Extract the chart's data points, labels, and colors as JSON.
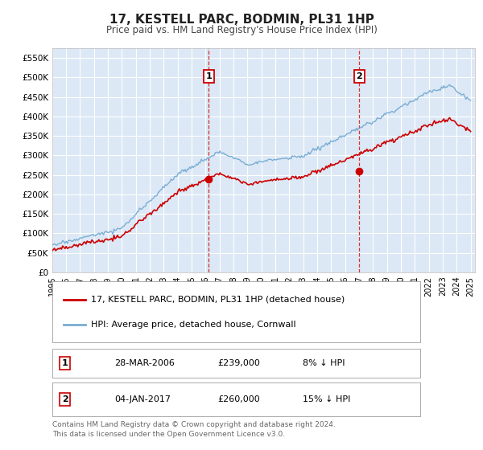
{
  "title": "17, KESTELL PARC, BODMIN, PL31 1HP",
  "subtitle": "Price paid vs. HM Land Registry's House Price Index (HPI)",
  "ylabel_ticks": [
    "£0",
    "£50K",
    "£100K",
    "£150K",
    "£200K",
    "£250K",
    "£300K",
    "£350K",
    "£400K",
    "£450K",
    "£500K",
    "£550K"
  ],
  "ytick_values": [
    0,
    50000,
    100000,
    150000,
    200000,
    250000,
    300000,
    350000,
    400000,
    450000,
    500000,
    550000
  ],
  "ylim": [
    0,
    575000
  ],
  "xlim_start": 1995.0,
  "xlim_end": 2025.3,
  "sale1_date": 2006.23,
  "sale1_price": 239000,
  "sale1_label": "1",
  "sale2_date": 2017.01,
  "sale2_price": 260000,
  "sale2_label": "2",
  "fig_bg_color": "#ffffff",
  "plot_bg_color": "#dce8f5",
  "grid_color": "#ffffff",
  "red_line_color": "#cc0000",
  "blue_line_color": "#7aadd4",
  "legend_label1": "17, KESTELL PARC, BODMIN, PL31 1HP (detached house)",
  "legend_label2": "HPI: Average price, detached house, Cornwall",
  "table_row1": [
    "1",
    "28-MAR-2006",
    "£239,000",
    "8% ↓ HPI"
  ],
  "table_row2": [
    "2",
    "04-JAN-2017",
    "£260,000",
    "15% ↓ HPI"
  ],
  "footer": "Contains HM Land Registry data © Crown copyright and database right 2024.\nThis data is licensed under the Open Government Licence v3.0."
}
